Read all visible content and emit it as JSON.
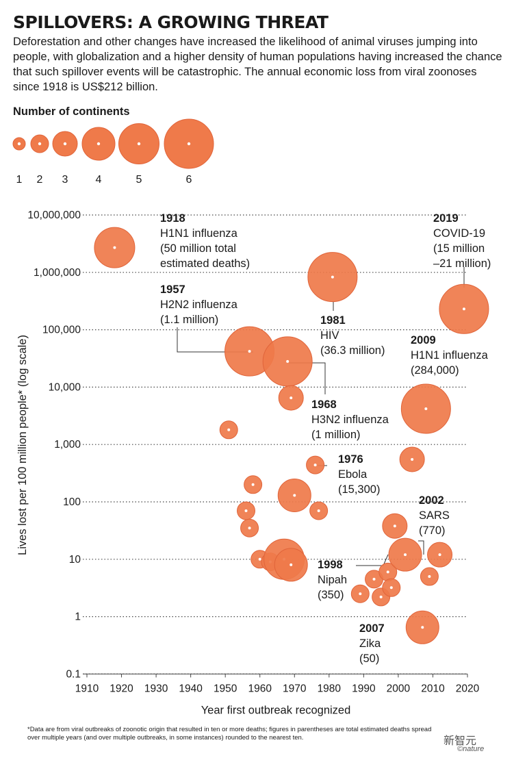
{
  "header": {
    "title": "SPILLOVERS: A GROWING THREAT",
    "subtitle": "Deforestation and other changes have increased the likelihood of animal viruses jumping into people, with globalization and a higher density of human populations having increased the chance that such spillover events will be catastrophic. The annual economic loss from viral zoonoses since 1918 is US$212 billion."
  },
  "legend": {
    "title": "Number of continents",
    "items": [
      "1",
      "2",
      "3",
      "4",
      "5",
      "6"
    ]
  },
  "colors": {
    "bubble": "#ef7a4a",
    "bubble_stroke": "#e0643a",
    "grid": "#444444"
  },
  "chart_data": {
    "type": "scatter",
    "title": "",
    "xlabel": "Year first outbreak recognized",
    "ylabel": "Lives lost per 100 million people* (log scale)",
    "xlim": [
      1910,
      2020
    ],
    "ylim": [
      0.1,
      10000000
    ],
    "yscale": "log",
    "xticks": [
      "1910",
      "1920",
      "1930",
      "1940",
      "1950",
      "1960",
      "1970",
      "1980",
      "1990",
      "2000",
      "2010",
      "2020"
    ],
    "yticks": [
      "10,000,000",
      "1,000,000",
      "100,000",
      "10,000",
      "1,000",
      "100",
      "10",
      "1",
      "0.1"
    ],
    "size_encoding": "number of continents",
    "grid": "horizontal dotted",
    "points": [
      {
        "year": 1918,
        "value": 2700000,
        "continents": 5
      },
      {
        "year": 1957,
        "value": 42000,
        "continents": 6
      },
      {
        "year": 1968,
        "value": 28000,
        "continents": 6
      },
      {
        "year": 1969,
        "value": 6500,
        "continents": 3
      },
      {
        "year": 1951,
        "value": 1800,
        "continents": 2
      },
      {
        "year": 1958,
        "value": 200,
        "continents": 2
      },
      {
        "year": 1956,
        "value": 70,
        "continents": 2
      },
      {
        "year": 1957,
        "value": 35,
        "continents": 2
      },
      {
        "year": 1960,
        "value": 10,
        "continents": 2
      },
      {
        "year": 1963,
        "value": 9,
        "continents": 2
      },
      {
        "year": 1967,
        "value": 10,
        "continents": 5
      },
      {
        "year": 1969,
        "value": 8,
        "continents": 4
      },
      {
        "year": 1970,
        "value": 130,
        "continents": 4
      },
      {
        "year": 1976,
        "value": 440,
        "continents": 2
      },
      {
        "year": 1977,
        "value": 70,
        "continents": 2
      },
      {
        "year": 1981,
        "value": 830000,
        "continents": 6
      },
      {
        "year": 1989,
        "value": 2.5,
        "continents": 2
      },
      {
        "year": 1993,
        "value": 4.5,
        "continents": 2
      },
      {
        "year": 1995,
        "value": 2.2,
        "continents": 2
      },
      {
        "year": 1997,
        "value": 6,
        "continents": 2
      },
      {
        "year": 1998,
        "value": 3.2,
        "continents": 2
      },
      {
        "year": 1999,
        "value": 38,
        "continents": 3
      },
      {
        "year": 2002,
        "value": 12,
        "continents": 4
      },
      {
        "year": 2004,
        "value": 550,
        "continents": 3
      },
      {
        "year": 2007,
        "value": 0.65,
        "continents": 4
      },
      {
        "year": 2008,
        "value": 4200,
        "continents": 6
      },
      {
        "year": 2009,
        "value": 5,
        "continents": 2
      },
      {
        "year": 2012,
        "value": 12,
        "continents": 3
      },
      {
        "year": 2019,
        "value": 230000,
        "continents": 6
      }
    ],
    "annotations": [
      {
        "year": "1918",
        "lines": [
          "H1N1 influenza",
          "(50 million total",
          "estimated deaths)"
        ]
      },
      {
        "year": "1957",
        "lines": [
          "H2N2 influenza",
          "(1.1 million)"
        ]
      },
      {
        "year": "1968",
        "lines": [
          "H3N2 influenza",
          "(1 million)"
        ]
      },
      {
        "year": "1976",
        "lines": [
          "Ebola",
          "(15,300)"
        ]
      },
      {
        "year": "1981",
        "lines": [
          "HIV",
          "(36.3 million)"
        ]
      },
      {
        "year": "1998",
        "lines": [
          "Nipah",
          "(350)"
        ]
      },
      {
        "year": "2002",
        "lines": [
          "SARS",
          "(770)"
        ]
      },
      {
        "year": "2007",
        "lines": [
          "Zika",
          "(50)"
        ]
      },
      {
        "year": "2009",
        "lines": [
          "H1N1 influenza",
          "(284,000)"
        ]
      },
      {
        "year": "2019",
        "lines": [
          "COVID-19",
          "(15 million",
          "–21 million)"
        ]
      }
    ]
  },
  "footnote": "*Data are from viral outbreaks of zoonotic origin that resulted in ten or more deaths; figures in parentheses are total estimated deaths spread over multiple years (and over multiple outbreaks, in some instances) rounded to the nearest ten.",
  "watermark": {
    "text": "新智元",
    "sub": "©nature"
  }
}
